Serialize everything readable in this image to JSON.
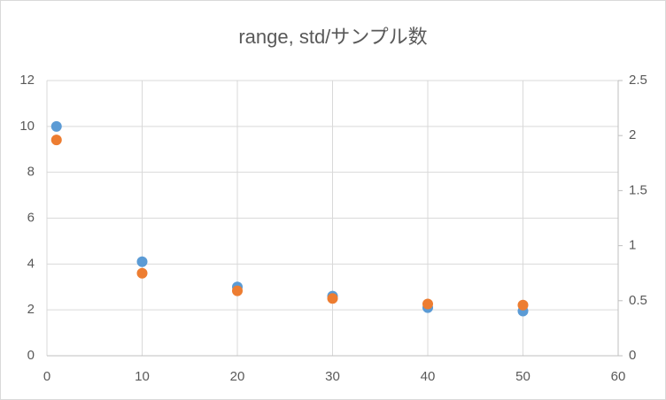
{
  "chart_data": {
    "type": "scatter",
    "title": "range, std/サンプル数",
    "series": [
      {
        "color": "#5b9bd5",
        "x": [
          1,
          10,
          20,
          30,
          40,
          50
        ],
        "values": [
          10,
          4.1,
          3.0,
          2.6,
          2.1,
          1.95
        ]
      },
      {
        "color": "#ed7d31",
        "axis": "y2",
        "x": [
          1,
          10,
          20,
          30,
          40,
          50
        ],
        "values": [
          1.96,
          0.75,
          0.59,
          0.52,
          0.47,
          0.46
        ]
      }
    ],
    "xlim": [
      0,
      60
    ],
    "xticks": [
      0,
      10,
      20,
      30,
      40,
      50,
      60
    ],
    "ylim": [
      0,
      12
    ],
    "yticks": [
      0,
      2,
      4,
      6,
      8,
      10,
      12
    ],
    "y2lim": [
      0,
      2.5
    ],
    "y2ticks": [
      0,
      0.5,
      1,
      1.5,
      2,
      2.5
    ],
    "grid": true
  }
}
